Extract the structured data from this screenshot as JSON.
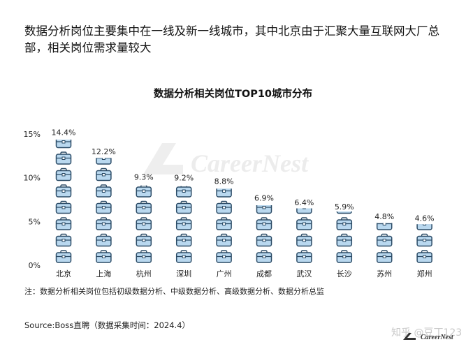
{
  "headline": "数据分析岗位主要集中在一线及新一线城市，其中北京由于汇聚大量互联网大厂总部，相关岗位需求量较大",
  "note": "注：数据分析相关岗位包括初级数据分析、中级数据分析、高级数据分析、数据分析总监",
  "source": "Source:Boss直聘（数据采集时间：2024.4）",
  "watermark_center": "CareerNest",
  "watermark_bottom": "知乎 @豆丁123",
  "brand": "CareerNest",
  "chart_data": {
    "type": "bar",
    "style": "pictogram-briefcase",
    "title": "数据分析相关岗位TOP10城市分布",
    "categories": [
      "北京",
      "上海",
      "杭州",
      "深圳",
      "广州",
      "成都",
      "武汉",
      "长沙",
      "苏州",
      "郑州"
    ],
    "values": [
      14.4,
      12.2,
      9.3,
      9.2,
      8.8,
      6.9,
      6.4,
      5.9,
      4.8,
      4.6
    ],
    "data_labels": [
      "14.4%",
      "12.2%",
      "9.3%",
      "9.2%",
      "8.8%",
      "6.9%",
      "6.4%",
      "5.9%",
      "4.8%",
      "4.6%"
    ],
    "yticks": [
      0,
      5,
      10,
      15
    ],
    "ytick_labels": [
      "0%",
      "5%",
      "10%",
      "15%"
    ],
    "ylim": [
      0,
      15
    ],
    "icon_unit": 1.875,
    "grid": false,
    "colors": {
      "icon_fill": "#b9d8ef",
      "icon_stroke": "#2b4b66",
      "text": "#111111"
    }
  }
}
